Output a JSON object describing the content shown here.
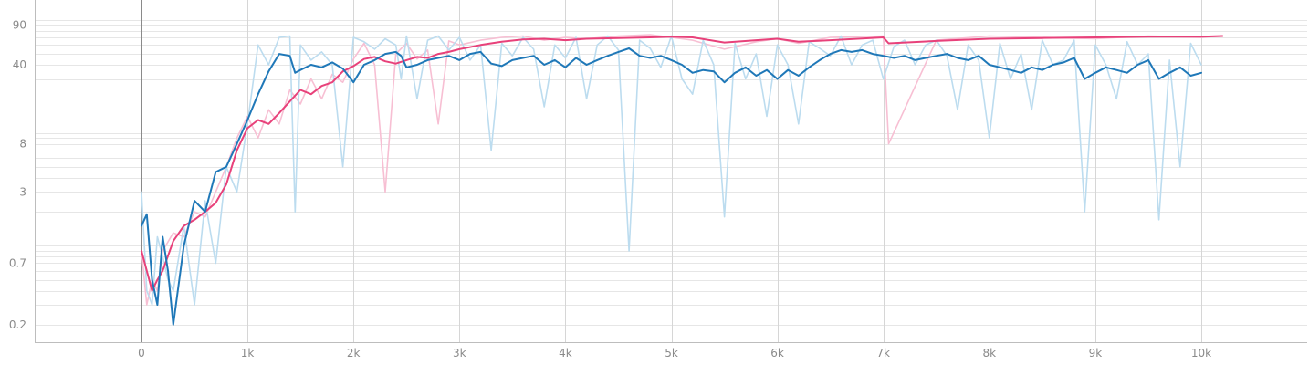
{
  "chart_data": {
    "type": "line",
    "title": "",
    "xlabel": "",
    "ylabel": "",
    "y_scale": "log",
    "xlim": [
      -1000,
      10000
    ],
    "ylim": [
      0.14,
      150
    ],
    "x_ticks": [
      {
        "value": 0,
        "label": "0"
      },
      {
        "value": 1000,
        "label": "1k"
      },
      {
        "value": 2000,
        "label": "2k"
      },
      {
        "value": 3000,
        "label": "3k"
      },
      {
        "value": 4000,
        "label": "4k"
      },
      {
        "value": 5000,
        "label": "5k"
      },
      {
        "value": 6000,
        "label": "6k"
      },
      {
        "value": 7000,
        "label": "7k"
      },
      {
        "value": 8000,
        "label": "8k"
      },
      {
        "value": 9000,
        "label": "9k"
      },
      {
        "value": 10000,
        "label": "10k"
      }
    ],
    "y_ticks": [
      {
        "value": 0.2,
        "label": "0.2"
      },
      {
        "value": 0.7,
        "label": "0.7"
      },
      {
        "value": 3,
        "label": "3"
      },
      {
        "value": 8,
        "label": "8"
      },
      {
        "value": 40,
        "label": "40"
      },
      {
        "value": 90,
        "label": "90"
      }
    ],
    "legend": "none",
    "grid": true,
    "series": [
      {
        "color": "#e8417a",
        "raw_color": "#f7bfd3",
        "x": [
          0,
          50,
          100,
          150,
          200,
          300,
          400,
          500,
          600,
          700,
          800,
          900,
          1000,
          1100,
          1200,
          1300,
          1400,
          1500,
          1600,
          1700,
          1800,
          1900,
          2000,
          2100,
          2200,
          2300,
          2400,
          2500,
          2600,
          2700,
          2800,
          2900,
          3000,
          3200,
          3400,
          3600,
          3800,
          4000,
          4200,
          4500,
          4800,
          5000,
          5200,
          5500,
          5800,
          6000,
          6200,
          6500,
          7000,
          7050,
          7500,
          8000,
          8500,
          9000,
          9500,
          10000,
          10200
        ],
        "smoothed": [
          0.9,
          0.6,
          0.4,
          0.5,
          0.6,
          1.1,
          1.5,
          1.7,
          2.0,
          2.4,
          3.5,
          7.0,
          11,
          13,
          12,
          15,
          19,
          24,
          22,
          26,
          28,
          35,
          39,
          45,
          47,
          43,
          41,
          44,
          47,
          46,
          50,
          52,
          55,
          60,
          64,
          67,
          68,
          66,
          68,
          69,
          70,
          71,
          70,
          63,
          66,
          68,
          64,
          66,
          70,
          62,
          65,
          68,
          69,
          70,
          71,
          71,
          72
        ],
        "raw": [
          0.9,
          0.3,
          0.5,
          0.4,
          0.9,
          1.3,
          1.2,
          2.0,
          1.8,
          3.0,
          5.0,
          9.0,
          14,
          9,
          16,
          12,
          24,
          18,
          30,
          20,
          33,
          28,
          45,
          62,
          40,
          3.0,
          50,
          62,
          45,
          54,
          12,
          65,
          60,
          66,
          70,
          72,
          66,
          70,
          68,
          72,
          74,
          70,
          66,
          55,
          64,
          68,
          62,
          70,
          72,
          8.0,
          66,
          72,
          70,
          68,
          72,
          70,
          72
        ]
      },
      {
        "color": "#1f78b8",
        "raw_color": "#bcdcef",
        "x": [
          0,
          50,
          100,
          150,
          200,
          250,
          300,
          400,
          500,
          600,
          700,
          800,
          900,
          1000,
          1100,
          1200,
          1300,
          1400,
          1450,
          1500,
          1600,
          1700,
          1800,
          1900,
          2000,
          2100,
          2200,
          2300,
          2400,
          2450,
          2500,
          2600,
          2700,
          2800,
          2900,
          3000,
          3100,
          3200,
          3300,
          3400,
          3500,
          3600,
          3700,
          3800,
          3900,
          4000,
          4100,
          4200,
          4300,
          4400,
          4500,
          4600,
          4700,
          4800,
          4900,
          5000,
          5100,
          5200,
          5300,
          5400,
          5500,
          5600,
          5700,
          5800,
          5900,
          6000,
          6100,
          6200,
          6300,
          6400,
          6500,
          6600,
          6700,
          6800,
          6900,
          7000,
          7100,
          7200,
          7300,
          7400,
          7500,
          7600,
          7700,
          7800,
          7900,
          8000,
          8100,
          8200,
          8300,
          8400,
          8500,
          8600,
          8700,
          8800,
          8900,
          9000,
          9100,
          9200,
          9300,
          9400,
          9500,
          9600,
          9700,
          9800,
          9900,
          10000
        ],
        "smoothed": [
          1.5,
          1.9,
          0.5,
          0.3,
          1.2,
          0.6,
          0.2,
          1.0,
          2.5,
          2.0,
          4.5,
          5.0,
          8.0,
          13,
          22,
          35,
          50,
          48,
          34,
          36,
          40,
          38,
          42,
          37,
          28,
          40,
          44,
          50,
          52,
          48,
          38,
          40,
          44,
          46,
          48,
          44,
          50,
          52,
          41,
          39,
          44,
          46,
          48,
          40,
          44,
          38,
          46,
          40,
          44,
          48,
          52,
          56,
          48,
          46,
          48,
          44,
          40,
          34,
          36,
          35,
          28,
          34,
          38,
          32,
          36,
          30,
          36,
          32,
          38,
          44,
          50,
          54,
          52,
          54,
          50,
          48,
          46,
          48,
          44,
          46,
          48,
          50,
          46,
          44,
          48,
          40,
          38,
          36,
          34,
          38,
          36,
          40,
          42,
          46,
          30,
          34,
          38,
          36,
          34,
          40,
          44,
          30,
          34,
          38,
          32,
          34
        ],
        "raw": [
          3.0,
          0.4,
          0.3,
          1.2,
          0.8,
          0.5,
          0.4,
          1.5,
          0.3,
          2.5,
          0.7,
          5.0,
          3.0,
          12,
          60,
          40,
          70,
          72,
          2.0,
          60,
          44,
          52,
          40,
          5.0,
          70,
          64,
          55,
          68,
          60,
          30,
          72,
          20,
          66,
          72,
          54,
          70,
          44,
          60,
          7.0,
          62,
          48,
          70,
          55,
          17,
          60,
          46,
          70,
          20,
          60,
          72,
          54,
          0.9,
          66,
          56,
          38,
          72,
          30,
          22,
          66,
          40,
          1.8,
          62,
          30,
          50,
          14,
          60,
          40,
          12,
          64,
          56,
          48,
          72,
          40,
          60,
          66,
          30,
          58,
          66,
          40,
          60,
          66,
          48,
          16,
          60,
          44,
          9.0,
          62,
          30,
          50,
          16,
          66,
          40,
          44,
          66,
          2.0,
          60,
          40,
          20,
          64,
          40,
          50,
          1.7,
          44,
          5.0,
          62,
          40
        ]
      }
    ]
  }
}
